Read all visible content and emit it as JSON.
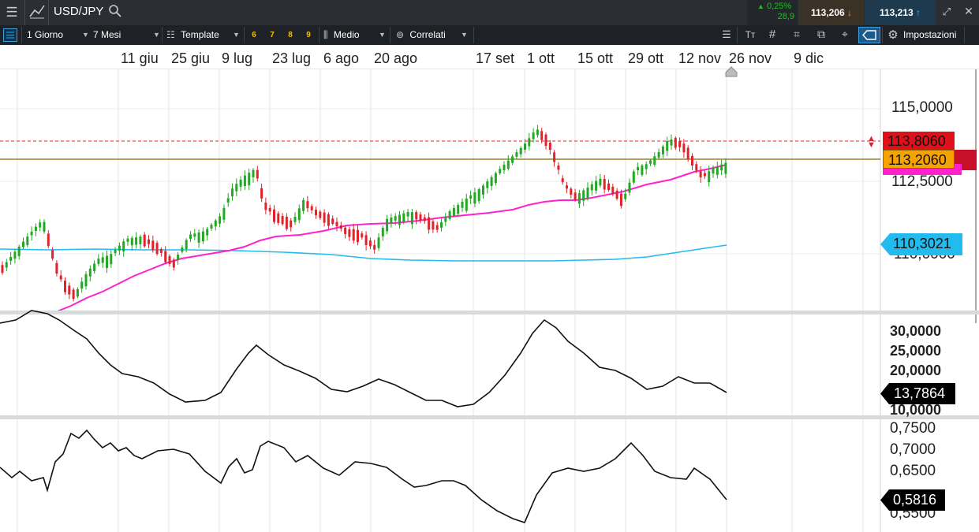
{
  "header": {
    "symbol": "USD/JPY",
    "change_pct": "0,25%",
    "change_abs": "28,9",
    "bid": "113,206",
    "ask": "113,213"
  },
  "toolbar": {
    "period": "1 Giorno",
    "range": "7 Mesi",
    "template": "Template",
    "quick": [
      "6",
      "7",
      "8",
      "9"
    ],
    "type": "Medio",
    "correlated": "Correlati",
    "settings": "Impostazioni"
  },
  "dates": [
    "11 giu",
    "25 giu",
    "9 lug",
    "23 lug",
    "6 ago",
    "20 ago",
    "17 set",
    "1 ott",
    "15 ott",
    "29 ott",
    "12 nov",
    "26 nov",
    "9 dic"
  ],
  "main_axis": [
    "115,0000",
    "112,5000",
    "110,0000"
  ],
  "tags": {
    "resistance": "113,8060",
    "last": "113,2060",
    "ma_long": "110,3021"
  },
  "ind1_axis": [
    "30,0000",
    "25,0000",
    "20,0000",
    "10,0000"
  ],
  "ind1_value": "13,7864",
  "ind2_axis": [
    "0,7500",
    "0,7000",
    "0,6500",
    "0,5500"
  ],
  "ind2_value": "0,5816",
  "colors": {
    "up": "#22a822",
    "down": "#e0222a",
    "ma_short": "#ff22cc",
    "ma_long": "#22bbee",
    "toolbar": "#1e2226"
  }
}
